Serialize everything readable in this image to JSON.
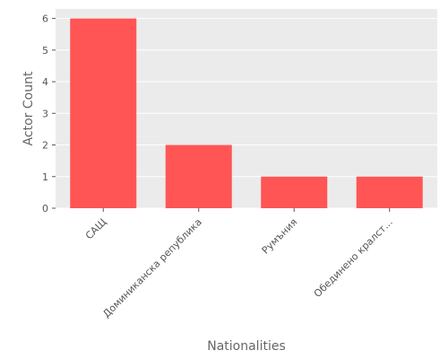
{
  "chart_data": {
    "type": "bar",
    "categories": [
      "САЩ",
      "Доминиканска република",
      "Румъния",
      "Обединено кралст..."
    ],
    "values": [
      6,
      2,
      1,
      1
    ],
    "title": "",
    "xlabel": "Nationalities",
    "ylabel": "Actor Count",
    "ylim": [
      0,
      6.3
    ],
    "yticks": [
      0,
      1,
      2,
      3,
      4,
      5,
      6
    ],
    "grid": true,
    "legend": "none",
    "colors": {
      "bar": "#ff5555",
      "plot_background": "#ebebeb",
      "gridline": "#ffffff",
      "text": "#555555",
      "axis_label": "#666666"
    }
  }
}
